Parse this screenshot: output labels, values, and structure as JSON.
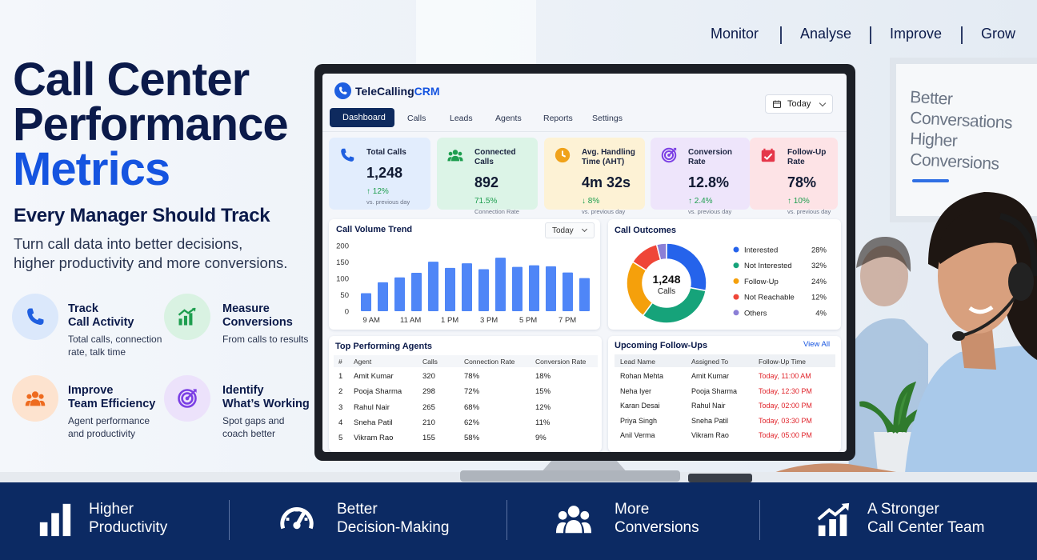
{
  "nav": [
    "Monitor",
    "Analyse",
    "Improve",
    "Grow"
  ],
  "hero": {
    "title": [
      "Call Center",
      "Performance"
    ],
    "highlight": "Metrics",
    "subtitle": "Every Manager Should Track",
    "description": [
      "Turn call data into better decisions,",
      "higher productivity and more conversions."
    ]
  },
  "features": [
    {
      "title": [
        "Track",
        "Call Activity"
      ],
      "text": [
        "Total calls, connection",
        "rate, talk time"
      ]
    },
    {
      "title": [
        "Measure",
        "Conversions"
      ],
      "text": [
        "From calls to results"
      ]
    },
    {
      "title": [
        "Improve",
        "Team Efficiency"
      ],
      "text": [
        "Agent performance",
        "and productivity"
      ]
    },
    {
      "title": [
        "Identify",
        "What’s Working"
      ],
      "text": [
        "Spot gaps and",
        "coach better"
      ]
    }
  ],
  "crm": {
    "brand": "TeleCalling",
    "brand_accent": "CRM",
    "date": "Today",
    "tabs": [
      "Dashboard",
      "Calls",
      "Leads",
      "Agents",
      "Reports",
      "Settings"
    ],
    "kpis": [
      {
        "label": "Total Calls",
        "value": "1,248",
        "change": "↑ 12%",
        "note": "vs. previous day"
      },
      {
        "label": "Connected Calls",
        "value": "892",
        "change": "71.5%",
        "note": "Connection Rate"
      },
      {
        "label": "Avg. Handling Time (AHT)",
        "value": "4m 32s",
        "change": "↓ 8%",
        "note": "vs. previous day"
      },
      {
        "label": "Conversion Rate",
        "value": "12.8%",
        "change": "↑ 2.4%",
        "note": "vs. previous day"
      },
      {
        "label": "Follow-Up Rate",
        "value": "78%",
        "change": "↑ 10%",
        "note": "vs. previous day"
      }
    ],
    "volume": {
      "title": "Call Volume Trend",
      "range": "Today",
      "ylim": [
        0,
        200
      ],
      "yticks": [
        0,
        50,
        100,
        150,
        200
      ],
      "x_labels": [
        "9 AM",
        "11 AM",
        "1 PM",
        "3 PM",
        "5 PM",
        "7 PM"
      ],
      "values": [
        55,
        88,
        103,
        117,
        151,
        132,
        146,
        128,
        163,
        135,
        140,
        137,
        118,
        101
      ],
      "color": "#4f86f7"
    },
    "outcomes": {
      "title": "Call Outcomes",
      "total": "1,248",
      "total_label": "Calls",
      "categories": [
        "Interested",
        "Not Interested",
        "Follow-Up",
        "Not Reachable",
        "Others"
      ],
      "values": [
        28,
        32,
        24,
        12,
        4
      ],
      "value_labels": [
        "28%",
        "32%",
        "24%",
        "12%",
        "4%"
      ],
      "colors": [
        "#2563eb",
        "#16a37a",
        "#f5a00b",
        "#ef4638",
        "#8b7fd6"
      ]
    },
    "agents": {
      "title": "Top Performing Agents",
      "columns": [
        "#",
        "Agent",
        "Calls",
        "Connection Rate",
        "Conversion Rate"
      ],
      "rows": [
        [
          "1",
          "Amit Kumar",
          "320",
          "78%",
          "18%"
        ],
        [
          "2",
          "Pooja Sharma",
          "298",
          "72%",
          "15%"
        ],
        [
          "3",
          "Rahul Nair",
          "265",
          "68%",
          "12%"
        ],
        [
          "4",
          "Sneha Patil",
          "210",
          "62%",
          "11%"
        ],
        [
          "5",
          "Vikram Rao",
          "155",
          "58%",
          "9%"
        ]
      ]
    },
    "followups": {
      "title": "Upcoming Follow-Ups",
      "link": "View All",
      "columns": [
        "Lead Name",
        "Assigned To",
        "Follow-Up Time"
      ],
      "rows": [
        [
          "Rohan Mehta",
          "Amit Kumar",
          "Today, 11:00 AM"
        ],
        [
          "Neha Iyer",
          "Pooja Sharma",
          "Today, 12:30 PM"
        ],
        [
          "Karan Desai",
          "Rahul Nair",
          "Today, 02:00 PM"
        ],
        [
          "Priya Singh",
          "Sneha Patil",
          "Today, 03:30 PM"
        ],
        [
          "Anil Verma",
          "Vikram Rao",
          "Today, 05:00 PM"
        ]
      ]
    }
  },
  "whiteboard": [
    "Better",
    "Conversations",
    "Higher",
    "Conversions"
  ],
  "benefits": [
    {
      "lines": [
        "Higher",
        "Productivity"
      ]
    },
    {
      "lines": [
        "Better",
        "Decision-Making"
      ]
    },
    {
      "lines": [
        "More",
        "Conversions"
      ]
    },
    {
      "lines": [
        "A Stronger",
        "Call Center Team"
      ]
    }
  ]
}
